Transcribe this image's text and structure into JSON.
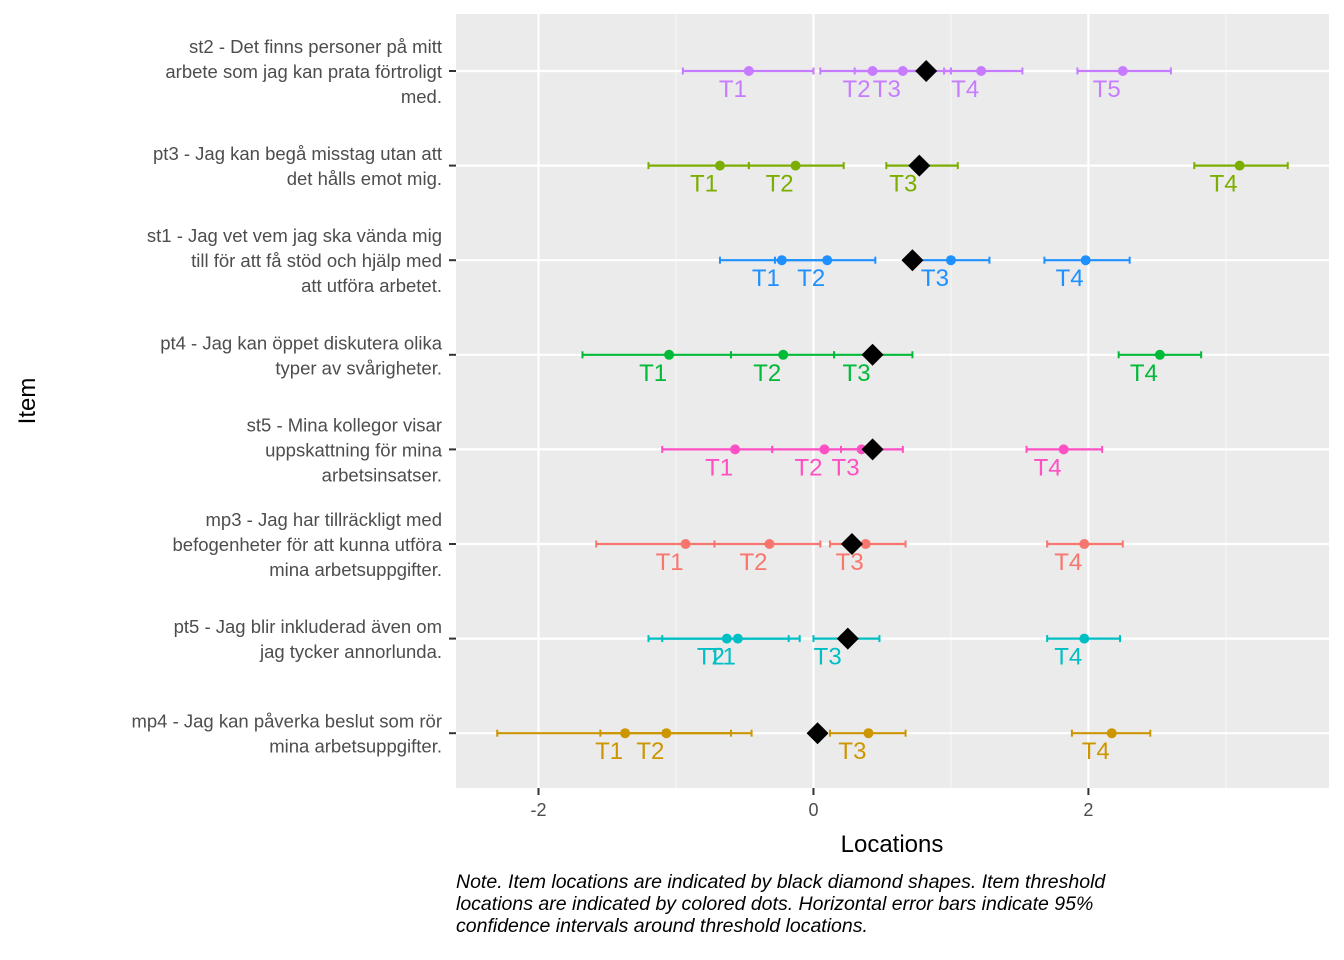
{
  "chart_data": {
    "type": "scatter",
    "xlabel": "Locations",
    "ylabel": "Item",
    "xlim": [
      -2.6,
      3.75
    ],
    "xticks": [
      -2,
      0,
      2
    ],
    "grid": true,
    "legend": "none",
    "items": [
      {
        "label_lines": [
          "st2 - Det finns personer på mitt",
          "arbete som jag kan prata förtroligt",
          "med."
        ],
        "color": "#C77CFF",
        "location": 0.82,
        "thresholds": [
          {
            "label": "T1",
            "value": -0.47,
            "lo": -0.95,
            "hi": 0.0
          },
          {
            "label": "T2",
            "value": 0.43,
            "lo": 0.05,
            "hi": 0.82
          },
          {
            "label": "T3",
            "value": 0.65,
            "lo": 0.3,
            "hi": 1.0
          },
          {
            "label": "T4",
            "value": 1.22,
            "lo": 0.95,
            "hi": 1.52
          },
          {
            "label": "T5",
            "value": 2.25,
            "lo": 1.92,
            "hi": 2.6
          }
        ]
      },
      {
        "label_lines": [
          "pt3 - Jag kan begå misstag utan att",
          "det hålls emot mig."
        ],
        "color": "#7CAE00",
        "location": 0.77,
        "thresholds": [
          {
            "label": "T1",
            "value": -0.68,
            "lo": -1.2,
            "hi": -0.47
          },
          {
            "label": "T2",
            "value": -0.13,
            "lo": -0.47,
            "hi": 0.22
          },
          {
            "label": "T3",
            "value": 0.77,
            "lo": 0.53,
            "hi": 1.05
          },
          {
            "label": "T4",
            "value": 3.1,
            "lo": 2.77,
            "hi": 3.45
          }
        ]
      },
      {
        "label_lines": [
          "st1 - Jag vet vem jag ska vända mig",
          "till för att få stöd och hjälp med",
          "att utföra arbetet."
        ],
        "color": "#1E90FF",
        "location": 0.72,
        "thresholds": [
          {
            "label": "T1",
            "value": -0.23,
            "lo": -0.68,
            "hi": 0.1
          },
          {
            "label": "T2",
            "value": 0.1,
            "lo": -0.28,
            "hi": 0.45
          },
          {
            "label": "T3",
            "value": 1.0,
            "lo": 0.72,
            "hi": 1.28
          },
          {
            "label": "T4",
            "value": 1.98,
            "lo": 1.68,
            "hi": 2.3
          }
        ]
      },
      {
        "label_lines": [
          "pt4 - Jag kan öppet diskutera olika",
          "typer av svårigheter."
        ],
        "color": "#00BA38",
        "location": 0.43,
        "thresholds": [
          {
            "label": "T1",
            "value": -1.05,
            "lo": -1.68,
            "hi": -0.6
          },
          {
            "label": "T2",
            "value": -0.22,
            "lo": -0.6,
            "hi": 0.15
          },
          {
            "label": "T3",
            "value": 0.43,
            "lo": 0.15,
            "hi": 0.72
          },
          {
            "label": "T4",
            "value": 2.52,
            "lo": 2.22,
            "hi": 2.82
          }
        ]
      },
      {
        "label_lines": [
          "st5 - Mina kollegor visar",
          "uppskattning för mina",
          "arbetsinsatser."
        ],
        "color": "#FF4FC4",
        "location": 0.43,
        "thresholds": [
          {
            "label": "T1",
            "value": -0.57,
            "lo": -1.1,
            "hi": -0.3
          },
          {
            "label": "T2",
            "value": 0.08,
            "lo": -0.3,
            "hi": 0.4
          },
          {
            "label": "T3",
            "value": 0.35,
            "lo": 0.2,
            "hi": 0.65
          },
          {
            "label": "T4",
            "value": 1.82,
            "lo": 1.55,
            "hi": 2.1
          }
        ]
      },
      {
        "label_lines": [
          "mp3 - Jag har tillräckligt med",
          "befogenheter för att kunna utföra",
          "mina arbetsuppgifter."
        ],
        "color": "#F8766D",
        "location": 0.28,
        "thresholds": [
          {
            "label": "T1",
            "value": -0.93,
            "lo": -1.58,
            "hi": -0.72
          },
          {
            "label": "T2",
            "value": -0.32,
            "lo": -0.72,
            "hi": 0.05
          },
          {
            "label": "T3",
            "value": 0.38,
            "lo": 0.12,
            "hi": 0.67
          },
          {
            "label": "T4",
            "value": 1.97,
            "lo": 1.7,
            "hi": 2.25
          }
        ]
      },
      {
        "label_lines": [
          "pt5 - Jag blir inkluderad även om",
          "jag tycker annorlunda."
        ],
        "color": "#00BFC4",
        "location": 0.25,
        "thresholds": [
          {
            "label": "T1",
            "value": -0.55,
            "lo": -1.1,
            "hi": -0.18
          },
          {
            "label": "T2",
            "value": -0.63,
            "lo": -1.2,
            "hi": -0.1
          },
          {
            "label": "T3",
            "value": 0.22,
            "lo": 0.0,
            "hi": 0.48
          },
          {
            "label": "T4",
            "value": 1.97,
            "lo": 1.7,
            "hi": 2.23
          }
        ]
      },
      {
        "label_lines": [
          "mp4 - Jag kan påverka beslut som rör",
          "mina arbetsuppgifter."
        ],
        "color": "#CD9600",
        "location": 0.03,
        "thresholds": [
          {
            "label": "T1",
            "value": -1.37,
            "lo": -2.3,
            "hi": -0.6
          },
          {
            "label": "T2",
            "value": -1.07,
            "lo": -1.55,
            "hi": -0.45
          },
          {
            "label": "T3",
            "value": 0.4,
            "lo": 0.12,
            "hi": 0.67
          },
          {
            "label": "T4",
            "value": 2.17,
            "lo": 1.88,
            "hi": 2.45
          }
        ]
      }
    ]
  },
  "note": {
    "lines": [
      "Note. Item locations are indicated by black diamond shapes. Item threshold",
      "locations are indicated by colored dots. Horizontal error bars indicate 95%",
      "confidence intervals around threshold locations."
    ]
  }
}
